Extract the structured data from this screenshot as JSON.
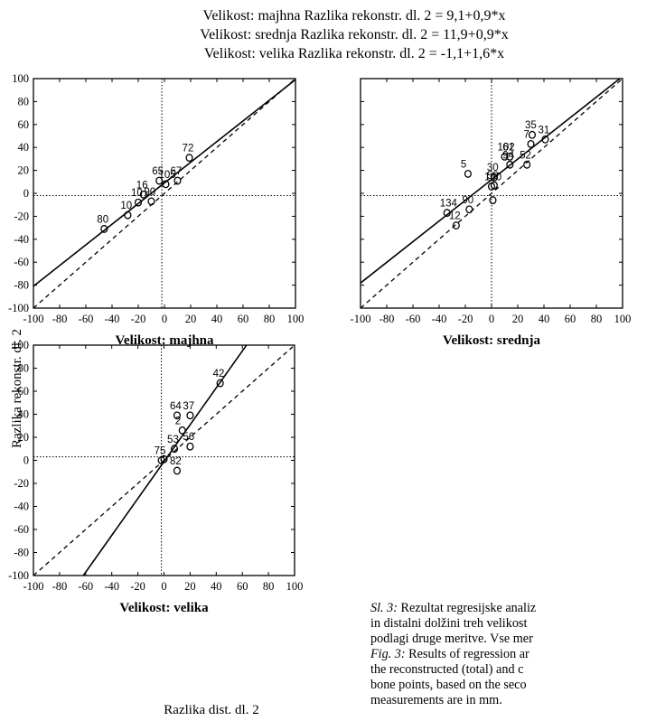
{
  "title_lines": [
    "Velikost: majhna Razlika rekonstr. dl. 2 = 9,1+0,9*x",
    "Velikost: srednja Razlika rekonstr. dl. 2 = 11,9+0,9*x",
    "Velikost: velika Razlika rekonstr. dl. 2 = -1,1+1,6*x"
  ],
  "ylabel": "Razlika rekonstr. dl. 2",
  "xlabel": "Razlika dist. dl. 2",
  "caption": {
    "sl_label": "Sl. 3:",
    "sl_line1": "Rezultat regresijske analiz",
    "sl_line2": "in distalni dolžini treh velikost",
    "sl_line3": "podlagi druge meritve. Vse mer",
    "fig_label": "Fig. 3:",
    "fig_line1": "Results of regression ar",
    "fig_line2": "the reconstructed (total) and c",
    "fig_line3": "bone points, based on the seco",
    "fig_line4": "measurements are in mm."
  },
  "chart_data": [
    {
      "type": "scatter",
      "panel_label": "Velikost: majhna",
      "xlim": [
        -100,
        100
      ],
      "ylim": [
        -100,
        100
      ],
      "xticks": [
        "-100",
        "-80",
        "-60",
        "-40",
        "-20",
        "0",
        "20",
        "40",
        "60",
        "80",
        "100"
      ],
      "yticks": [
        "100",
        "80",
        "60",
        "40",
        "20",
        "0",
        "-20",
        "-40",
        "-60",
        "-80",
        "-100"
      ],
      "regression": {
        "intercept": 9.1,
        "slope": 0.9
      },
      "identity_line": true,
      "ref_lines": {
        "x": -2,
        "y": -2
      },
      "points": [
        {
          "x": -46,
          "y": -31,
          "label": "80"
        },
        {
          "x": -28,
          "y": -19,
          "label": "10"
        },
        {
          "x": -20,
          "y": -8,
          "label": "10"
        },
        {
          "x": -16,
          "y": -1,
          "label": "16"
        },
        {
          "x": -10,
          "y": -7,
          "label": "90"
        },
        {
          "x": -4,
          "y": 11,
          "label": "65"
        },
        {
          "x": 1,
          "y": 8,
          "label": "105"
        },
        {
          "x": 10,
          "y": 11,
          "label": "67"
        },
        {
          "x": 19,
          "y": 31,
          "label": "72"
        }
      ]
    },
    {
      "type": "scatter",
      "panel_label": "Velikost: srednja",
      "xlim": [
        -100,
        100
      ],
      "ylim": [
        -100,
        100
      ],
      "xticks": [
        "-100",
        "-80",
        "-60",
        "-40",
        "-20",
        "0",
        "20",
        "40",
        "60",
        "80",
        "100"
      ],
      "yticks": [],
      "regression": {
        "intercept": 11.9,
        "slope": 0.9
      },
      "identity_line": true,
      "ref_lines": {
        "x": 0,
        "y": -2
      },
      "points": [
        {
          "x": -34,
          "y": -17,
          "label": "134"
        },
        {
          "x": -27,
          "y": -28,
          "label": "12"
        },
        {
          "x": -18,
          "y": 17,
          "label": "5"
        },
        {
          "x": -17,
          "y": -14,
          "label": "90"
        },
        {
          "x": 0,
          "y": 6,
          "label": "100"
        },
        {
          "x": 1,
          "y": -6,
          "label": ""
        },
        {
          "x": 2,
          "y": 14,
          "label": "30"
        },
        {
          "x": 2,
          "y": 7,
          "label": "50"
        },
        {
          "x": 10,
          "y": 32,
          "label": "102"
        },
        {
          "x": 14,
          "y": 32,
          "label": "61"
        },
        {
          "x": 14,
          "y": 25,
          "label": "94"
        },
        {
          "x": 27,
          "y": 25,
          "label": "52"
        },
        {
          "x": 30,
          "y": 43,
          "label": "7"
        },
        {
          "x": 31,
          "y": 51,
          "label": "35"
        },
        {
          "x": 41,
          "y": 47,
          "label": "31"
        }
      ]
    },
    {
      "type": "scatter",
      "panel_label": "Velikost: velika",
      "xlim": [
        -100,
        100
      ],
      "ylim": [
        -100,
        100
      ],
      "xticks": [
        "-100",
        "-80",
        "-60",
        "-40",
        "-20",
        "0",
        "20",
        "40",
        "60",
        "80",
        "100"
      ],
      "yticks": [
        "100",
        "80",
        "60",
        "40",
        "20",
        "0",
        "-20",
        "-40",
        "-60",
        "-80",
        "-100"
      ],
      "regression": {
        "intercept": -1.1,
        "slope": 1.6
      },
      "identity_line": true,
      "ref_lines": {
        "x": -2,
        "y": 3
      },
      "points": [
        {
          "x": -2,
          "y": 0,
          "label": "75"
        },
        {
          "x": 0,
          "y": 1,
          "label": ""
        },
        {
          "x": 8,
          "y": 10,
          "label": "53"
        },
        {
          "x": 10,
          "y": 39,
          "label": "64"
        },
        {
          "x": 10,
          "y": -9,
          "label": "82"
        },
        {
          "x": 14,
          "y": 26,
          "label": "2"
        },
        {
          "x": 20,
          "y": 39,
          "label": "37"
        },
        {
          "x": 20,
          "y": 12,
          "label": "56"
        },
        {
          "x": 43,
          "y": 67,
          "label": "42"
        }
      ]
    }
  ]
}
